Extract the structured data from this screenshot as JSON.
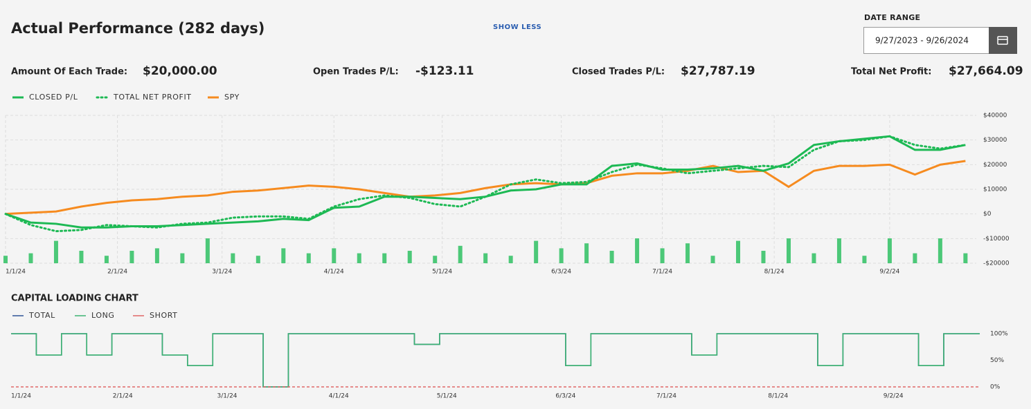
{
  "header": {
    "title": "Actual Performance (282 days)",
    "toggle": "SHOW LESS",
    "date_range_label": "DATE RANGE",
    "date_range": "9/27/2023 - 9/26/2024"
  },
  "stats": [
    {
      "label": "Amount Of Each Trade:",
      "value": "$20,000.00"
    },
    {
      "label": "Open Trades P/L:",
      "value": "-$123.11"
    },
    {
      "label": "Closed Trades P/L:",
      "value": "$27,787.19"
    },
    {
      "label": "Total Net Profit:",
      "value": "$27,664.09"
    }
  ],
  "chart_data": [
    {
      "type": "line",
      "grid": true,
      "x": [
        "1/1/24",
        "1/8/24",
        "1/15/24",
        "1/22/24",
        "1/29/24",
        "2/5/24",
        "2/12/24",
        "2/19/24",
        "2/26/24",
        "3/4/24",
        "3/11/24",
        "3/18/24",
        "3/25/24",
        "4/1/24",
        "4/8/24",
        "4/15/24",
        "4/22/24",
        "4/29/24",
        "5/6/24",
        "5/13/24",
        "5/20/24",
        "5/27/24",
        "6/3/24",
        "6/10/24",
        "6/17/24",
        "6/24/24",
        "7/1/24",
        "7/8/24",
        "7/15/24",
        "7/22/24",
        "7/29/24",
        "8/5/24",
        "8/12/24",
        "8/19/24",
        "8/26/24",
        "9/2/24",
        "9/9/24",
        "9/16/24",
        "9/23/24"
      ],
      "xlim": [
        "1/1/24",
        "9/26/24"
      ],
      "xticks": [
        "1/1/24",
        "2/1/24",
        "3/1/24",
        "4/1/24",
        "5/1/24",
        "6/3/24",
        "7/1/24",
        "8/1/24",
        "9/2/24"
      ],
      "ylim": [
        -20000,
        40000
      ],
      "yticks": [
        {
          "value": 40000,
          "label": "$40000"
        },
        {
          "value": 30000,
          "label": "$30000"
        },
        {
          "value": 20000,
          "label": "$20000"
        },
        {
          "value": 10000,
          "label": "$10000"
        },
        {
          "value": 0,
          "label": "$0"
        },
        {
          "value": -10000,
          "label": "-$10000"
        },
        {
          "value": -20000,
          "label": "-$20000"
        }
      ],
      "y2lim": [
        0,
        10
      ],
      "series": [
        {
          "name": "",
          "type": "bar",
          "axis": "y2",
          "color": "#4cc878",
          "values": [
            3,
            4,
            9,
            5,
            3,
            5,
            6,
            4,
            10,
            4,
            3,
            6,
            4,
            6,
            4,
            4,
            5,
            3,
            7,
            4,
            3,
            9,
            6,
            8,
            5,
            10,
            6,
            8,
            3,
            9,
            5,
            10,
            4,
            10,
            3,
            10,
            4,
            10,
            4
          ]
        },
        {
          "name": "SPY",
          "color": "#f68b1f",
          "style": "solid",
          "values": [
            0,
            500,
            1000,
            3000,
            4500,
            5500,
            6000,
            7000,
            7500,
            9000,
            9500,
            10500,
            11500,
            11000,
            10000,
            8500,
            7000,
            7500,
            8500,
            10500,
            12000,
            12500,
            12000,
            12500,
            15500,
            16500,
            16500,
            17500,
            19500,
            17000,
            17500,
            11000,
            17500,
            19500,
            19500,
            20000,
            16000,
            20000,
            21500
          ]
        },
        {
          "name": "TOTAL NET PROFIT",
          "color": "#1db954",
          "style": "dotted",
          "values": [
            0,
            -4500,
            -7000,
            -6500,
            -4500,
            -5000,
            -5500,
            -4000,
            -3500,
            -1500,
            -1000,
            -1000,
            -2000,
            3000,
            6000,
            7500,
            6500,
            4000,
            3000,
            7000,
            12000,
            14000,
            12500,
            13000,
            17000,
            20000,
            18500,
            16500,
            17500,
            18500,
            19500,
            19000,
            26000,
            29500,
            30000,
            31500,
            28000,
            26500,
            28000
          ]
        },
        {
          "name": "CLOSED P/L",
          "color": "#1db954",
          "style": "solid",
          "values": [
            0,
            -3500,
            -4000,
            -5500,
            -5500,
            -5000,
            -5000,
            -4500,
            -4000,
            -3500,
            -3000,
            -2000,
            -2500,
            2500,
            3000,
            7000,
            7000,
            6500,
            6000,
            7000,
            9500,
            10000,
            12000,
            12000,
            19500,
            20500,
            18000,
            18000,
            18500,
            19500,
            17500,
            20500,
            28000,
            29500,
            30500,
            31500,
            26000,
            26000,
            28000
          ]
        }
      ],
      "legend": [
        3,
        2,
        1
      ]
    },
    {
      "type": "line",
      "title": "CAPITAL LOADING CHART",
      "step": true,
      "grid": false,
      "x": [
        "1/1/24",
        "1/8/24",
        "1/15/24",
        "1/22/24",
        "1/29/24",
        "2/5/24",
        "2/12/24",
        "2/19/24",
        "2/26/24",
        "3/4/24",
        "3/11/24",
        "3/18/24",
        "3/25/24",
        "4/1/24",
        "4/8/24",
        "4/15/24",
        "4/22/24",
        "4/29/24",
        "5/6/24",
        "5/13/24",
        "5/20/24",
        "5/27/24",
        "6/3/24",
        "6/10/24",
        "6/17/24",
        "6/24/24",
        "7/1/24",
        "7/8/24",
        "7/15/24",
        "7/22/24",
        "7/29/24",
        "8/5/24",
        "8/12/24",
        "8/19/24",
        "8/26/24",
        "9/2/24",
        "9/9/24",
        "9/16/24",
        "9/23/24"
      ],
      "xlim": [
        "1/1/24",
        "9/26/24"
      ],
      "xticks": [
        "1/1/24",
        "2/1/24",
        "3/1/24",
        "4/1/24",
        "5/1/24",
        "6/3/24",
        "7/1/24",
        "8/1/24",
        "9/2/24"
      ],
      "ylim": [
        0,
        100
      ],
      "yticks": [
        {
          "value": 100,
          "label": "100%"
        },
        {
          "value": 50,
          "label": "50%"
        },
        {
          "value": 0,
          "label": "0%"
        }
      ],
      "series": [
        {
          "name": "TOTAL",
          "color": "#2f5597",
          "style": "solid",
          "values": [
            100,
            60,
            100,
            60,
            100,
            100,
            60,
            40,
            100,
            100,
            0,
            100,
            100,
            100,
            100,
            100,
            80,
            100,
            100,
            100,
            100,
            100,
            40,
            100,
            100,
            100,
            100,
            60,
            100,
            100,
            100,
            100,
            40,
            100,
            100,
            100,
            40,
            100,
            100
          ]
        },
        {
          "name": "LONG",
          "color": "#3cb371",
          "style": "solid",
          "values": [
            100,
            60,
            100,
            60,
            100,
            100,
            60,
            40,
            100,
            100,
            0,
            100,
            100,
            100,
            100,
            100,
            80,
            100,
            100,
            100,
            100,
            100,
            40,
            100,
            100,
            100,
            100,
            60,
            100,
            100,
            100,
            100,
            40,
            100,
            100,
            100,
            40,
            100,
            100
          ]
        },
        {
          "name": "SHORT",
          "color": "#e06666",
          "style": "dashed",
          "values": [
            0,
            0,
            0,
            0,
            0,
            0,
            0,
            0,
            0,
            0,
            0,
            0,
            0,
            0,
            0,
            0,
            0,
            0,
            0,
            0,
            0,
            0,
            0,
            0,
            0,
            0,
            0,
            0,
            0,
            0,
            0,
            0,
            0,
            0,
            0,
            0,
            0,
            0,
            0
          ]
        }
      ],
      "legend": [
        0,
        1,
        2
      ]
    }
  ]
}
